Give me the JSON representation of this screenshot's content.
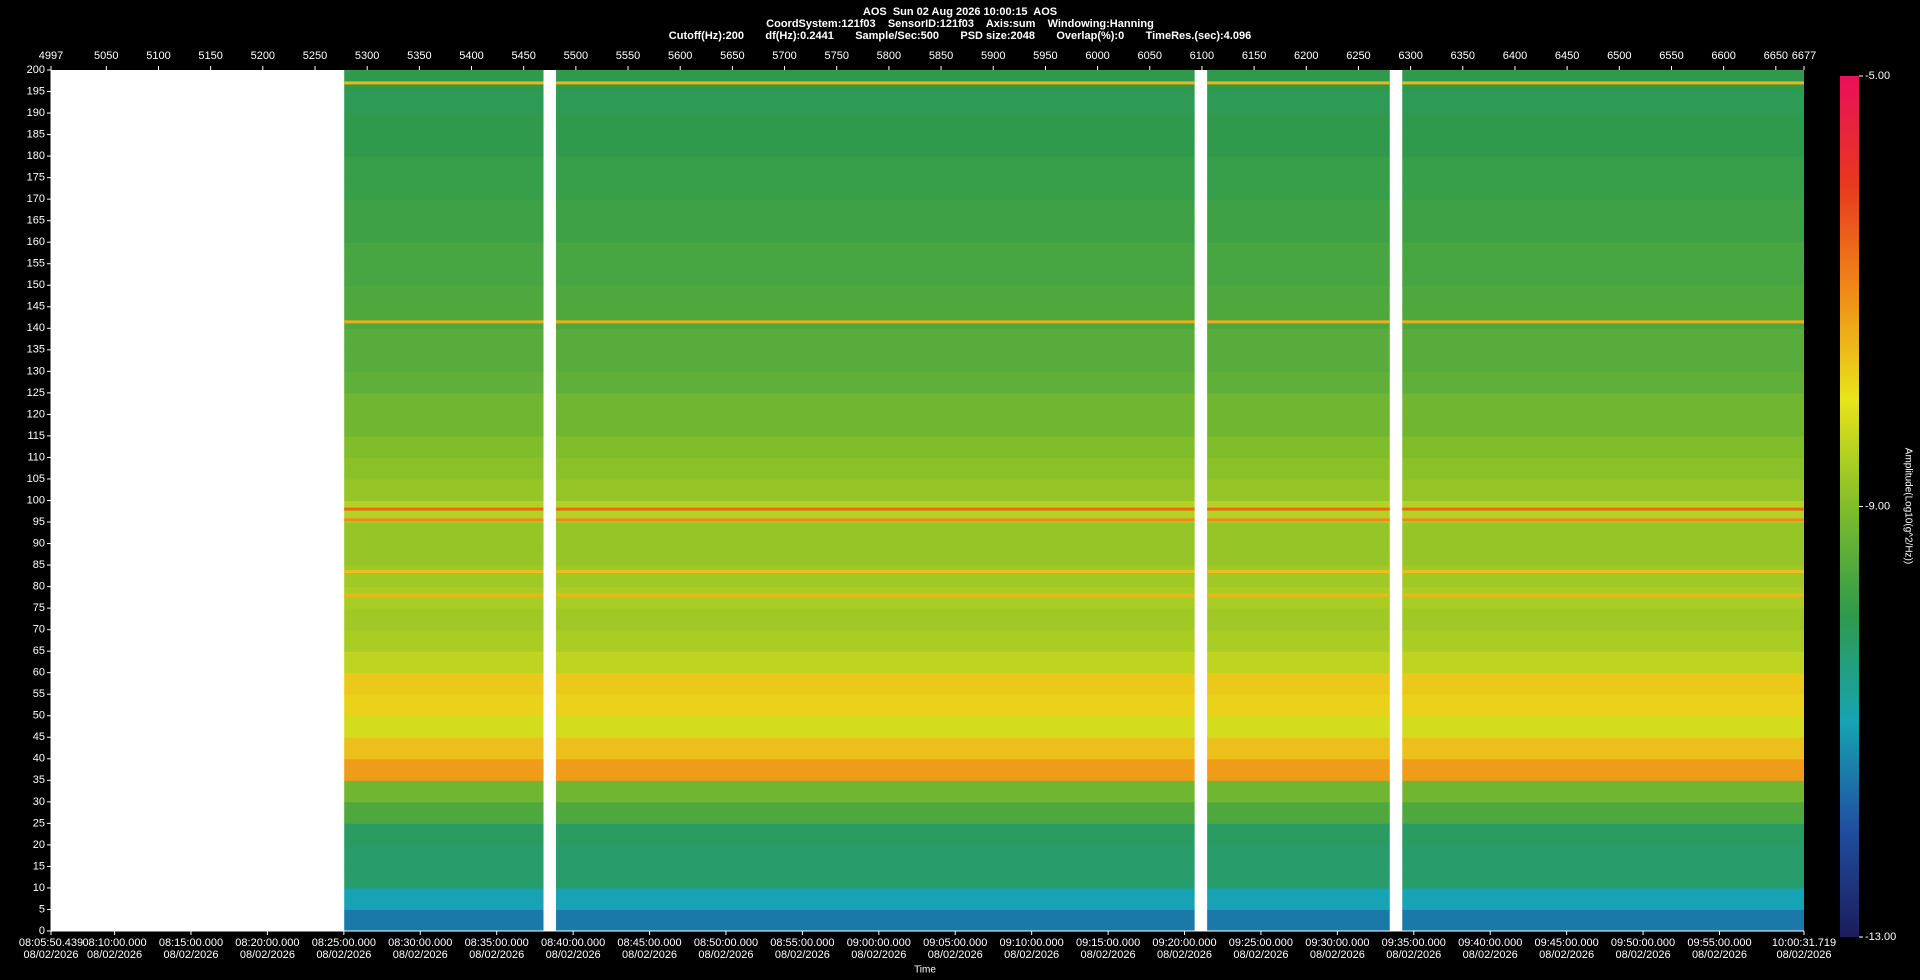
{
  "chart_data": {
    "type": "spectrogram",
    "title": "AOS  Sun 02 Aug 2026 10:00:15  AOS",
    "subtitle": [
      "CoordSystem:121f03    SensorID:121f03    Axis:sum    Windowing:Hanning",
      "Cutoff(Hz):200       df(Hz):0.2441       Sample/Sec:500       PSD size:2048       Overlap(%):0       TimeRes.(sec):4.096"
    ],
    "x_label": "Time",
    "colorbar_label": "Amplitude(Log10(g^2/Hz))",
    "xlim": [
      4997,
      6677
    ],
    "xticks": [
      4997,
      5050,
      5100,
      5150,
      5200,
      5250,
      5300,
      5350,
      5400,
      5450,
      5500,
      5550,
      5600,
      5650,
      5700,
      5750,
      5800,
      5850,
      5900,
      5950,
      6000,
      6050,
      6100,
      6150,
      6200,
      6250,
      6300,
      6350,
      6400,
      6450,
      6500,
      6550,
      6600,
      6650,
      6677
    ],
    "xticks_time": [
      {
        "value": 4997,
        "label": "08:05:50.439\n08/02/2026"
      },
      {
        "value": 5057.93,
        "label": "08:10:00.000\n08/02/2026"
      },
      {
        "value": 5131.17,
        "label": "08:15:00.000\n08/02/2026"
      },
      {
        "value": 5204.41,
        "label": "08:20:00.000\n08/02/2026"
      },
      {
        "value": 5277.65,
        "label": "08:25:00.000\n08/02/2026"
      },
      {
        "value": 5350.9,
        "label": "08:30:00.000\n08/02/2026"
      },
      {
        "value": 5424.14,
        "label": "08:35:00.000\n08/02/2026"
      },
      {
        "value": 5497.38,
        "label": "08:40:00.000\n08/02/2026"
      },
      {
        "value": 5570.62,
        "label": "08:45:00.000\n08/02/2026"
      },
      {
        "value": 5643.86,
        "label": "08:50:00.000\n08/02/2026"
      },
      {
        "value": 5717.1,
        "label": "08:55:00.000\n08/02/2026"
      },
      {
        "value": 5790.35,
        "label": "09:00:00.000\n08/02/2026"
      },
      {
        "value": 5863.59,
        "label": "09:05:00.000\n08/02/2026"
      },
      {
        "value": 5936.83,
        "label": "09:10:00.000\n08/02/2026"
      },
      {
        "value": 6010.07,
        "label": "09:15:00.000\n08/02/2026"
      },
      {
        "value": 6083.31,
        "label": "09:20:00.000\n08/02/2026"
      },
      {
        "value": 6156.55,
        "label": "09:25:00.000\n08/02/2026"
      },
      {
        "value": 6229.8,
        "label": "09:30:00.000\n08/02/2026"
      },
      {
        "value": 6303.04,
        "label": "09:35:00.000\n08/02/2026"
      },
      {
        "value": 6376.28,
        "label": "09:40:00.000\n08/02/2026"
      },
      {
        "value": 6449.52,
        "label": "09:45:00.000\n08/02/2026"
      },
      {
        "value": 6522.76,
        "label": "09:50:00.000\n08/02/2026"
      },
      {
        "value": 6596,
        "label": "09:55:00.000\n08/02/2026"
      },
      {
        "value": 6677,
        "label": "10:00:31.719\n08/02/2026"
      }
    ],
    "ylim": [
      0,
      200
    ],
    "yticks": [
      0,
      5,
      10,
      15,
      20,
      25,
      30,
      35,
      40,
      45,
      50,
      55,
      60,
      65,
      70,
      75,
      80,
      85,
      90,
      95,
      100,
      105,
      110,
      115,
      120,
      125,
      130,
      135,
      140,
      145,
      150,
      155,
      160,
      165,
      170,
      175,
      180,
      185,
      190,
      195,
      200
    ],
    "clim": [
      -13,
      -5
    ],
    "cticks": [
      {
        "value": -5,
        "label": "-5.00"
      },
      {
        "value": -9,
        "label": "-9.00"
      },
      {
        "value": -13,
        "label": "-13.00"
      }
    ],
    "colormap": [
      "#1c1c5c",
      "#1f4fa0",
      "#17a3b3",
      "#2f9a4c",
      "#80bd2a",
      "#e9e41b",
      "#f08a18",
      "#e8381e",
      "#e8105a"
    ],
    "segments": [
      [
        5278,
        5469
      ],
      [
        5481,
        6093
      ],
      [
        6105,
        6280
      ],
      [
        6292,
        6677
      ]
    ],
    "freq_bins": [
      0,
      5,
      10,
      15,
      20,
      25,
      30,
      35,
      40,
      45,
      50,
      55,
      60,
      65,
      70,
      75,
      80,
      85,
      90,
      95,
      100,
      105,
      110,
      115,
      120,
      125,
      130,
      135,
      140,
      145,
      150,
      155,
      160,
      165,
      170,
      175,
      180,
      185,
      190,
      195,
      200
    ],
    "amplitude": [
      -11.5,
      -11,
      -10.3,
      -10.3,
      -10.2,
      -9.6,
      -9.2,
      -7.2,
      -7.6,
      -8.2,
      -7.8,
      -7.7,
      -8.4,
      -8.6,
      -8.7,
      -8.6,
      -8.7,
      -8.8,
      -8.8,
      -8.5,
      -8.8,
      -8.9,
      -9,
      -9.2,
      -9.2,
      -9.4,
      -9.5,
      -9.5,
      -9.6,
      -9.6,
      -9.7,
      -9.7,
      -9.8,
      -9.8,
      -9.9,
      -9.9,
      -10,
      -10,
      -10.1,
      -10
    ],
    "spectral_lines": {
      "freqs": [
        197,
        141.5,
        98,
        95.5,
        83.5,
        78
      ],
      "amplitudes": [
        -7.5,
        -7.4,
        -6.6,
        -7,
        -7.6,
        -7.5
      ]
    }
  }
}
